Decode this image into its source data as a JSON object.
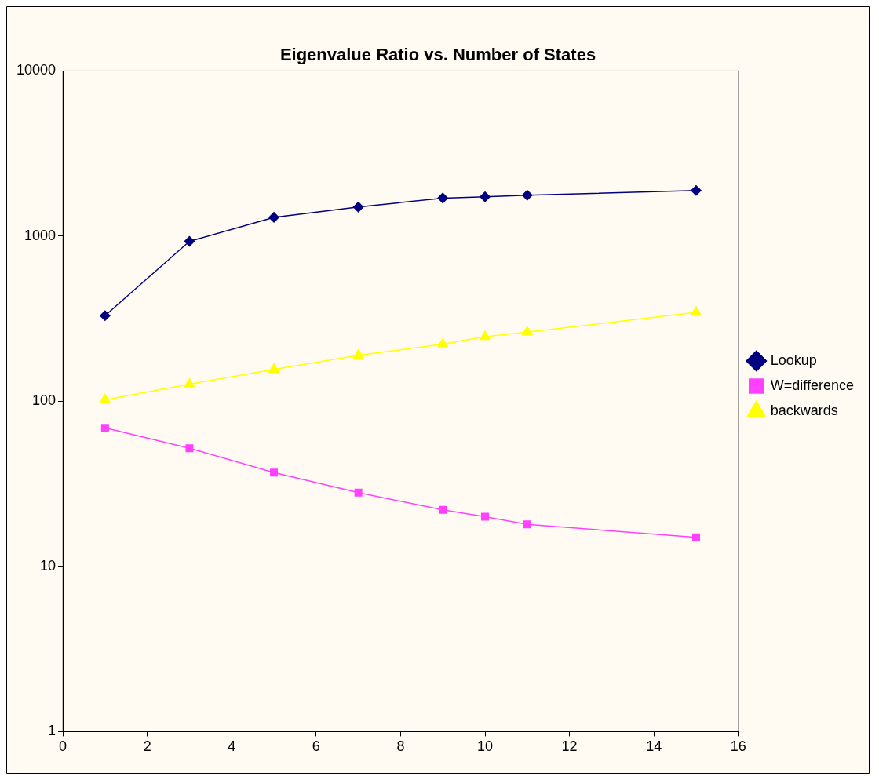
{
  "chart_data": {
    "type": "line",
    "title": "Eigenvalue Ratio vs. Number of States",
    "x": [
      1,
      3,
      5,
      7,
      9,
      10,
      11,
      15
    ],
    "series": [
      {
        "name": "Lookup",
        "color": "#000080",
        "marker": "diamond",
        "values": [
          330,
          930,
          1300,
          1500,
          1700,
          1730,
          1770,
          1890
        ]
      },
      {
        "name": "W=difference",
        "color": "#ff40ff",
        "marker": "square",
        "values": [
          69,
          52,
          37,
          28,
          22,
          20,
          18,
          15
        ]
      },
      {
        "name": "backwards",
        "color": "#ffff00",
        "marker": "triangle",
        "values": [
          102,
          127,
          156,
          190,
          222,
          246,
          262,
          346
        ]
      }
    ],
    "xlim": [
      0,
      16
    ],
    "xticks": [
      0,
      2,
      4,
      6,
      8,
      10,
      12,
      14,
      16
    ],
    "ylim": [
      1,
      10000
    ],
    "yticks": [
      1,
      10,
      100,
      1000,
      10000
    ],
    "log": "y",
    "grid": false,
    "legend": "right",
    "line_style": "solid"
  }
}
